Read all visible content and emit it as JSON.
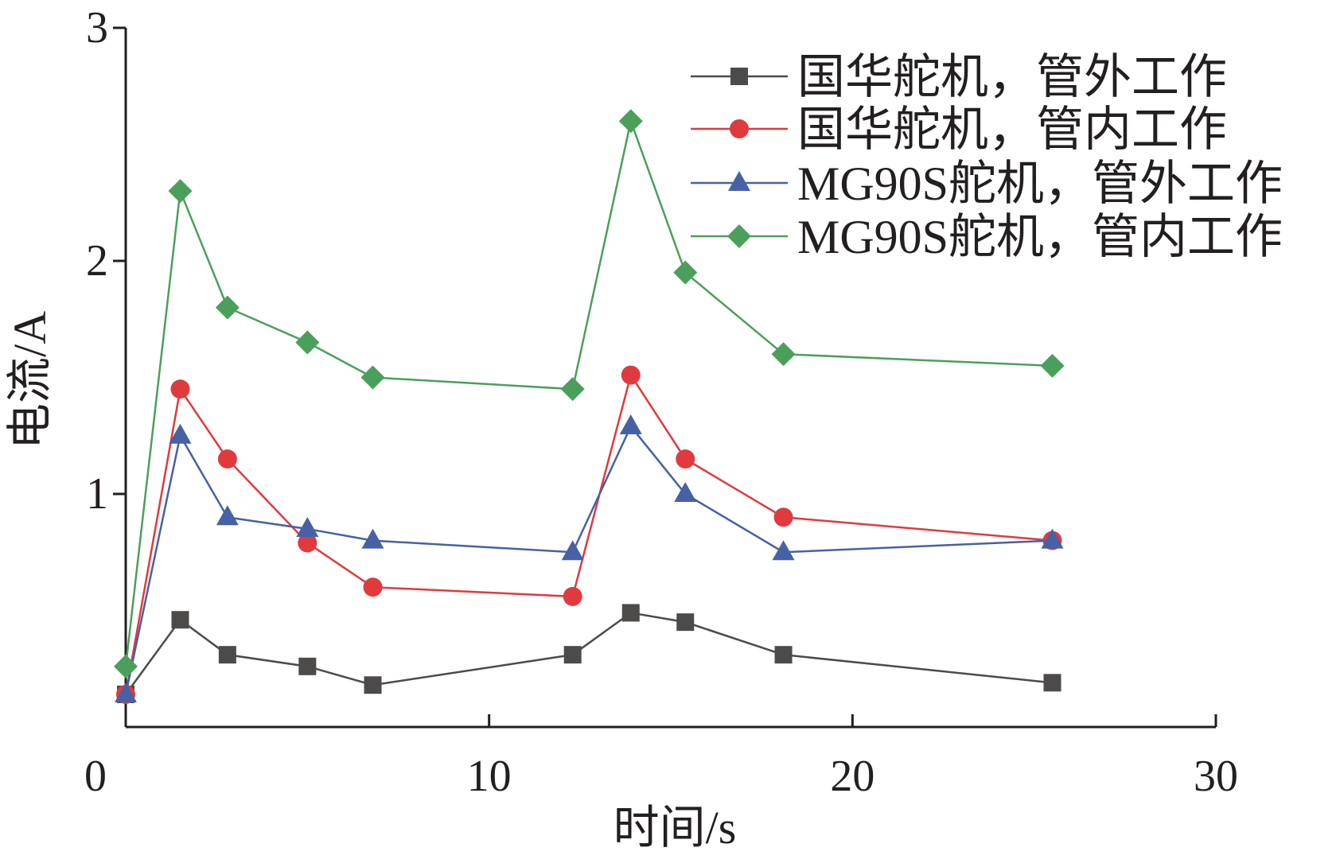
{
  "chart_data": {
    "type": "line",
    "title": "",
    "xlabel": "时间/s",
    "ylabel": "电流/A",
    "xlim": [
      0,
      30
    ],
    "ylim": [
      0,
      3
    ],
    "xticks": [
      0,
      10,
      20,
      30
    ],
    "yticks": [
      1,
      2,
      3
    ],
    "grid": false,
    "legend_position": "top-right",
    "x": [
      0,
      1.5,
      2.8,
      5.0,
      6.8,
      12.3,
      13.9,
      15.4,
      18.1,
      25.5
    ],
    "series": [
      {
        "name": "国华舵机，管外工作",
        "color": "#4d4a4a",
        "marker": "square",
        "values": [
          0.14,
          0.46,
          0.31,
          0.26,
          0.18,
          0.31,
          0.49,
          0.45,
          0.31,
          0.19
        ]
      },
      {
        "name": "国华舵机，管内工作",
        "color": "#e03a3e",
        "marker": "circle",
        "values": [
          0.14,
          1.45,
          1.15,
          0.79,
          0.6,
          0.56,
          1.51,
          1.15,
          0.9,
          0.8
        ]
      },
      {
        "name": "MG90S舵机，管外工作",
        "color": "#4661a5",
        "marker": "triangle",
        "values": [
          0.14,
          1.25,
          0.9,
          0.85,
          0.8,
          0.75,
          1.29,
          1.0,
          0.75,
          0.8
        ]
      },
      {
        "name": "MG90S舵机，管内工作",
        "color": "#4aa05a",
        "marker": "diamond",
        "values": [
          0.26,
          2.3,
          1.8,
          1.65,
          1.5,
          1.45,
          2.6,
          1.95,
          1.6,
          1.55
        ]
      }
    ]
  }
}
